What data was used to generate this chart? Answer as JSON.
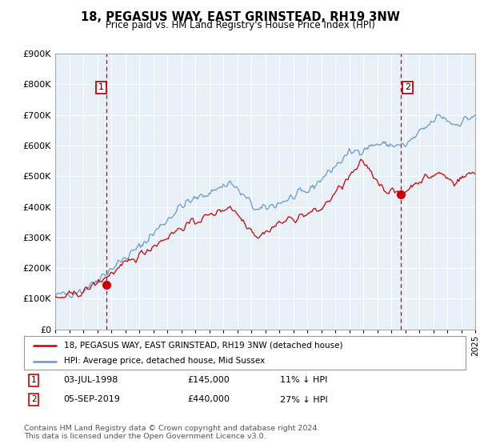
{
  "title": "18, PEGASUS WAY, EAST GRINSTEAD, RH19 3NW",
  "subtitle": "Price paid vs. HM Land Registry's House Price Index (HPI)",
  "legend_line1": "18, PEGASUS WAY, EAST GRINSTEAD, RH19 3NW (detached house)",
  "legend_line2": "HPI: Average price, detached house, Mid Sussex",
  "annotation1_date": "03-JUL-1998",
  "annotation1_price": 145000,
  "annotation1_hpi": "11% ↓ HPI",
  "annotation2_date": "05-SEP-2019",
  "annotation2_price": 440000,
  "annotation2_hpi": "27% ↓ HPI",
  "footer": "Contains HM Land Registry data © Crown copyright and database right 2024.\nThis data is licensed under the Open Government Licence v3.0.",
  "ylim": [
    0,
    900000
  ],
  "yticks": [
    0,
    100000,
    200000,
    300000,
    400000,
    500000,
    600000,
    700000,
    800000,
    900000
  ],
  "bg_color": "#ffffff",
  "plot_bg_color": "#e8f0f8",
  "grid_color": "#ffffff",
  "red_color": "#cc0000",
  "blue_color": "#6699cc",
  "sale1_x": 1998.67,
  "sale1_y": 145000,
  "sale2_x": 2019.67,
  "sale2_y": 440000,
  "xmin": 1995,
  "xmax": 2025
}
